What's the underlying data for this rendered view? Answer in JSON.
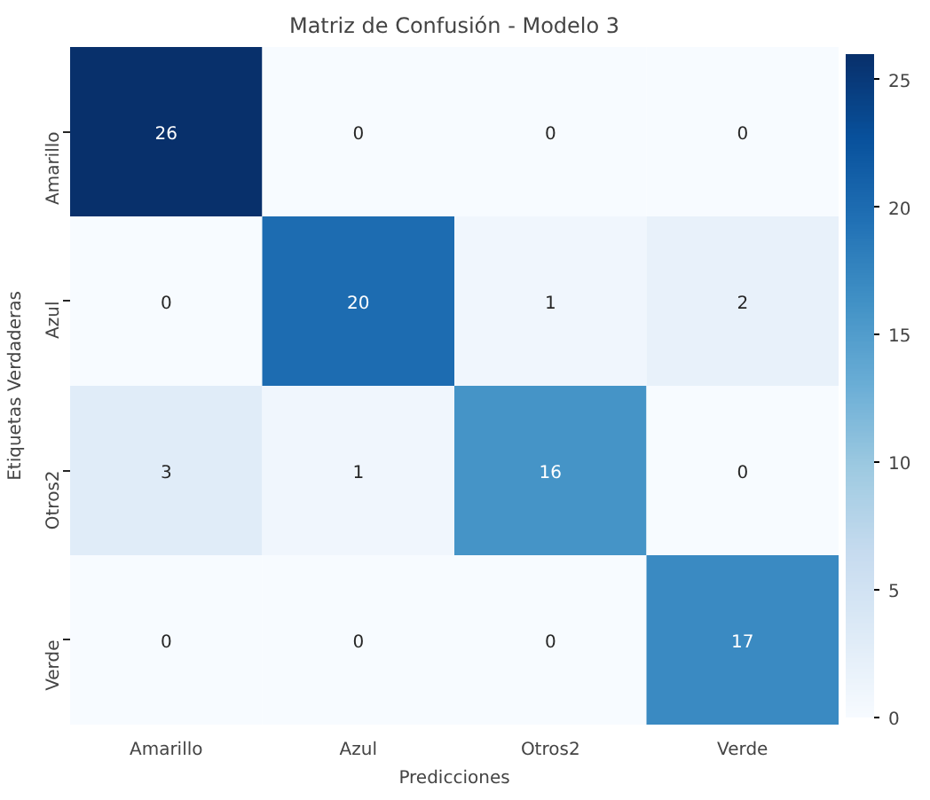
{
  "chart_data": {
    "type": "heatmap",
    "title": "Matriz de Confusión - Modelo 3",
    "xlabel": "Predicciones",
    "ylabel": "Etiquetas Verdaderas",
    "categories": [
      "Amarillo",
      "Azul",
      "Otros2",
      "Verde"
    ],
    "y_categories": [
      "Amarillo",
      "Azul",
      "Otros2",
      "Verde"
    ],
    "cells": [
      [
        26,
        0,
        0,
        0
      ],
      [
        0,
        20,
        1,
        2
      ],
      [
        3,
        1,
        16,
        0
      ],
      [
        0,
        0,
        0,
        17
      ]
    ],
    "clim": [
      0,
      26
    ],
    "cticks": [
      0,
      5,
      10,
      15,
      20,
      25
    ],
    "data_labels": true
  }
}
